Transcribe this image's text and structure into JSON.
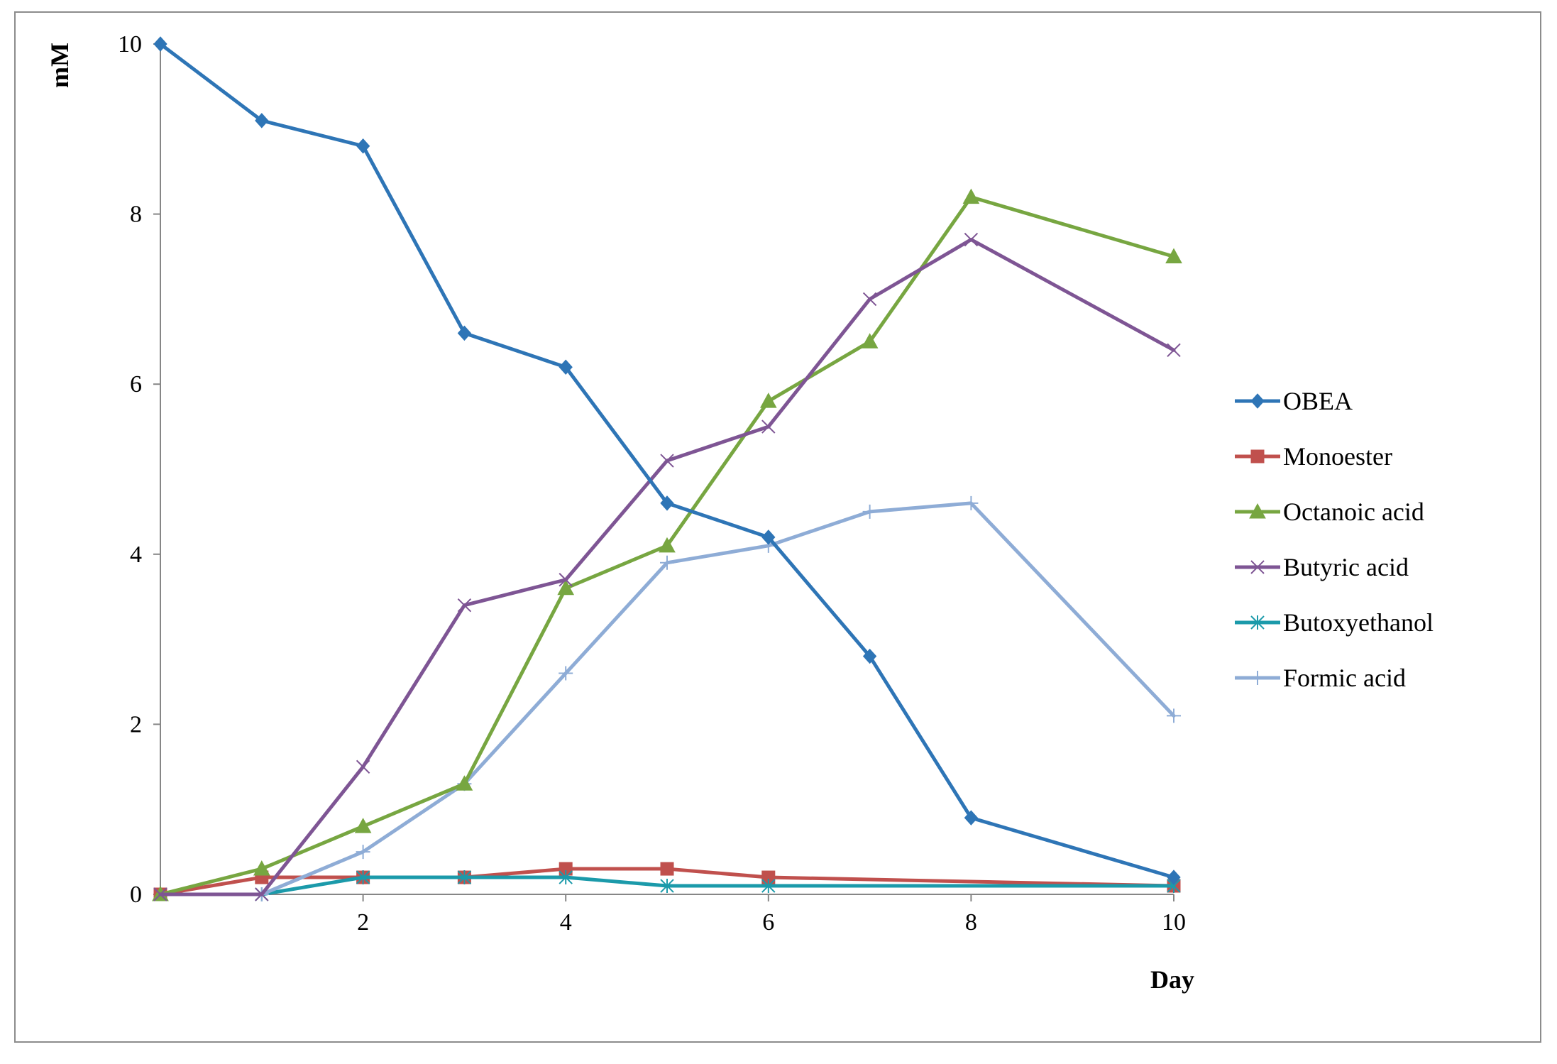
{
  "chart_data": {
    "type": "line",
    "title": "",
    "xlabel": "Day",
    "ylabel": "mM",
    "xlim": [
      0,
      10
    ],
    "ylim": [
      0,
      10
    ],
    "x_ticks": [
      2,
      4,
      6,
      8,
      10
    ],
    "y_ticks": [
      0,
      2,
      4,
      6,
      8,
      10
    ],
    "legend_position": "right",
    "grid": false,
    "series": [
      {
        "name": "OBEA",
        "color": "#2E75B6",
        "marker": "diamond",
        "x": [
          0,
          1,
          2,
          3,
          4,
          5,
          6,
          7,
          8,
          10
        ],
        "values": [
          10,
          9.1,
          8.8,
          6.6,
          6.2,
          4.6,
          4.2,
          2.8,
          0.9,
          0.2
        ]
      },
      {
        "name": "Monoester",
        "color": "#C0504D",
        "marker": "square",
        "x": [
          0,
          1,
          2,
          3,
          4,
          5,
          6,
          10
        ],
        "values": [
          0,
          0.2,
          0.2,
          0.2,
          0.3,
          0.3,
          0.2,
          0.1
        ]
      },
      {
        "name": "Octanoic acid",
        "color": "#77A641",
        "marker": "triangle",
        "x": [
          0,
          1,
          2,
          3,
          4,
          5,
          6,
          7,
          8,
          10
        ],
        "values": [
          0,
          0.3,
          0.8,
          1.3,
          3.6,
          4.1,
          5.8,
          6.5,
          8.2,
          7.5
        ]
      },
      {
        "name": "Butyric acid",
        "color": "#7E5594",
        "marker": "x",
        "x": [
          0,
          1,
          2,
          3,
          4,
          5,
          6,
          7,
          8,
          10
        ],
        "values": [
          0,
          0,
          1.5,
          3.4,
          3.7,
          5.1,
          5.5,
          7.0,
          7.7,
          6.4
        ]
      },
      {
        "name": "Butoxyethanol",
        "color": "#1B9AAA",
        "marker": "asterisk",
        "x": [
          1,
          2,
          3,
          4,
          5,
          6,
          10
        ],
        "values": [
          0,
          0.2,
          0.2,
          0.2,
          0.1,
          0.1,
          0.1
        ]
      },
      {
        "name": "Formic acid",
        "color": "#8EACD6",
        "marker": "plus",
        "x": [
          1,
          2,
          3,
          4,
          5,
          6,
          7,
          8,
          10
        ],
        "values": [
          0,
          0.5,
          1.3,
          2.6,
          3.9,
          4.1,
          4.5,
          4.6,
          2.1
        ]
      }
    ]
  }
}
